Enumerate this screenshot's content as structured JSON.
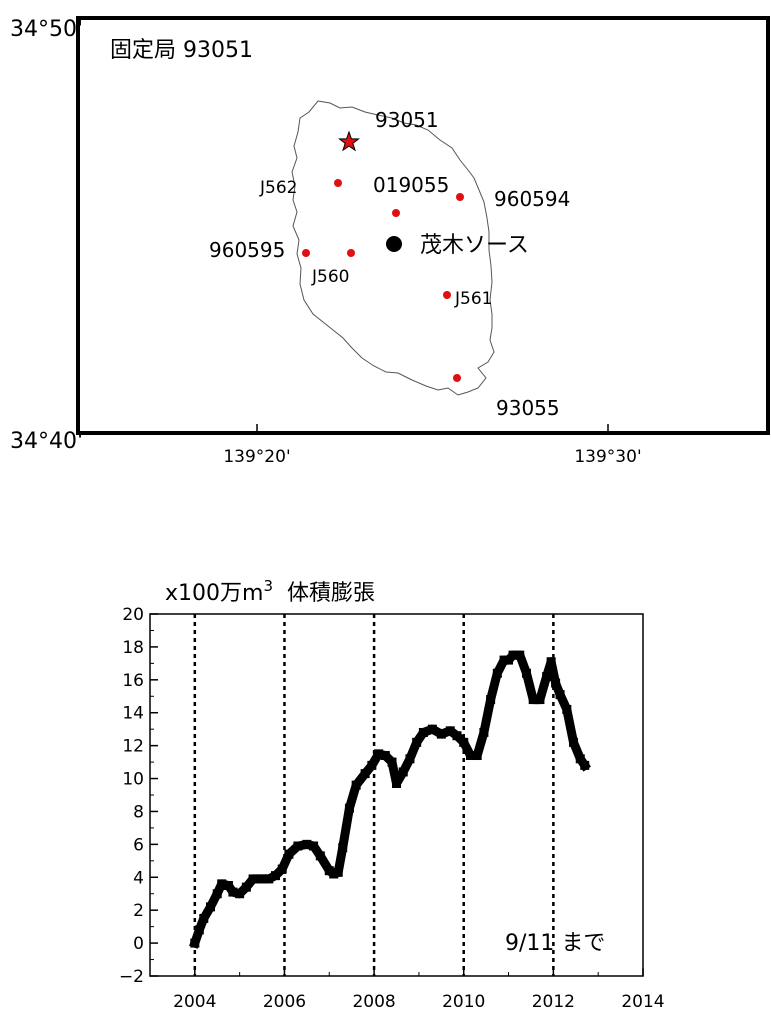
{
  "map": {
    "lat_top": "34°50'",
    "lat_bottom": "34°40'",
    "lon_left": "139°20'",
    "lon_right": "139°30'",
    "station_label": "固定局 93051",
    "fixed_station": "93051",
    "source_label": "茂木ソース",
    "stations": [
      {
        "id": "J562"
      },
      {
        "id": "019055"
      },
      {
        "id": "960594"
      },
      {
        "id": "960595"
      },
      {
        "id": "J560"
      },
      {
        "id": "J561"
      },
      {
        "id": "93055"
      }
    ],
    "colors": {
      "station_dot": "#e01010",
      "source_dot": "#000000",
      "frame": "#000000",
      "coast": "#555555"
    }
  },
  "chart_data": {
    "type": "line",
    "title": "",
    "ylabel": "x100万m3 体積膨張",
    "ylabel_parts": {
      "prefix": "x100万m",
      "sup": "3",
      "suffix": "体積膨張"
    },
    "xlabel": "",
    "xlim": [
      2003,
      2014
    ],
    "ylim": [
      -2,
      20
    ],
    "x_ticks": [
      2004,
      2006,
      2008,
      2010,
      2012,
      2014
    ],
    "y_ticks": [
      -2,
      0,
      2,
      4,
      6,
      8,
      10,
      12,
      14,
      16,
      18,
      20
    ],
    "vlines": [
      2004,
      2006,
      2008,
      2010,
      2012
    ],
    "annotation": "9/11 まで",
    "series": [
      {
        "color": "#000000",
        "x": [
          2004.0,
          2004.1,
          2004.2,
          2004.35,
          2004.5,
          2004.6,
          2004.75,
          2004.85,
          2005.0,
          2005.15,
          2005.3,
          2005.5,
          2005.65,
          2005.8,
          2005.95,
          2006.1,
          2006.3,
          2006.5,
          2006.65,
          2006.8,
          2007.0,
          2007.1,
          2007.2,
          2007.3,
          2007.45,
          2007.6,
          2007.8,
          2007.95,
          2008.1,
          2008.25,
          2008.4,
          2008.5,
          2008.65,
          2008.8,
          2008.95,
          2009.1,
          2009.3,
          2009.5,
          2009.7,
          2009.85,
          2010.0,
          2010.15,
          2010.3,
          2010.45,
          2010.6,
          2010.75,
          2010.9,
          2011.0,
          2011.1,
          2011.25,
          2011.4,
          2011.55,
          2011.7,
          2011.85,
          2011.95,
          2012.05,
          2012.15,
          2012.3,
          2012.45,
          2012.6,
          2012.7
        ],
        "values": [
          0.0,
          0.8,
          1.5,
          2.2,
          3.0,
          3.6,
          3.5,
          3.1,
          3.0,
          3.4,
          3.9,
          3.9,
          3.9,
          4.1,
          4.5,
          5.4,
          5.9,
          6.0,
          5.9,
          5.3,
          4.4,
          4.2,
          4.3,
          5.8,
          8.2,
          9.6,
          10.3,
          10.8,
          11.5,
          11.4,
          11.0,
          9.7,
          10.4,
          11.2,
          12.2,
          12.8,
          13.0,
          12.7,
          12.9,
          12.6,
          12.2,
          11.4,
          11.4,
          12.8,
          14.8,
          16.4,
          17.2,
          17.2,
          17.5,
          17.5,
          16.4,
          14.8,
          14.8,
          16.2,
          17.1,
          15.8,
          15.1,
          14.2,
          12.2,
          11.2,
          10.8
        ]
      }
    ]
  }
}
